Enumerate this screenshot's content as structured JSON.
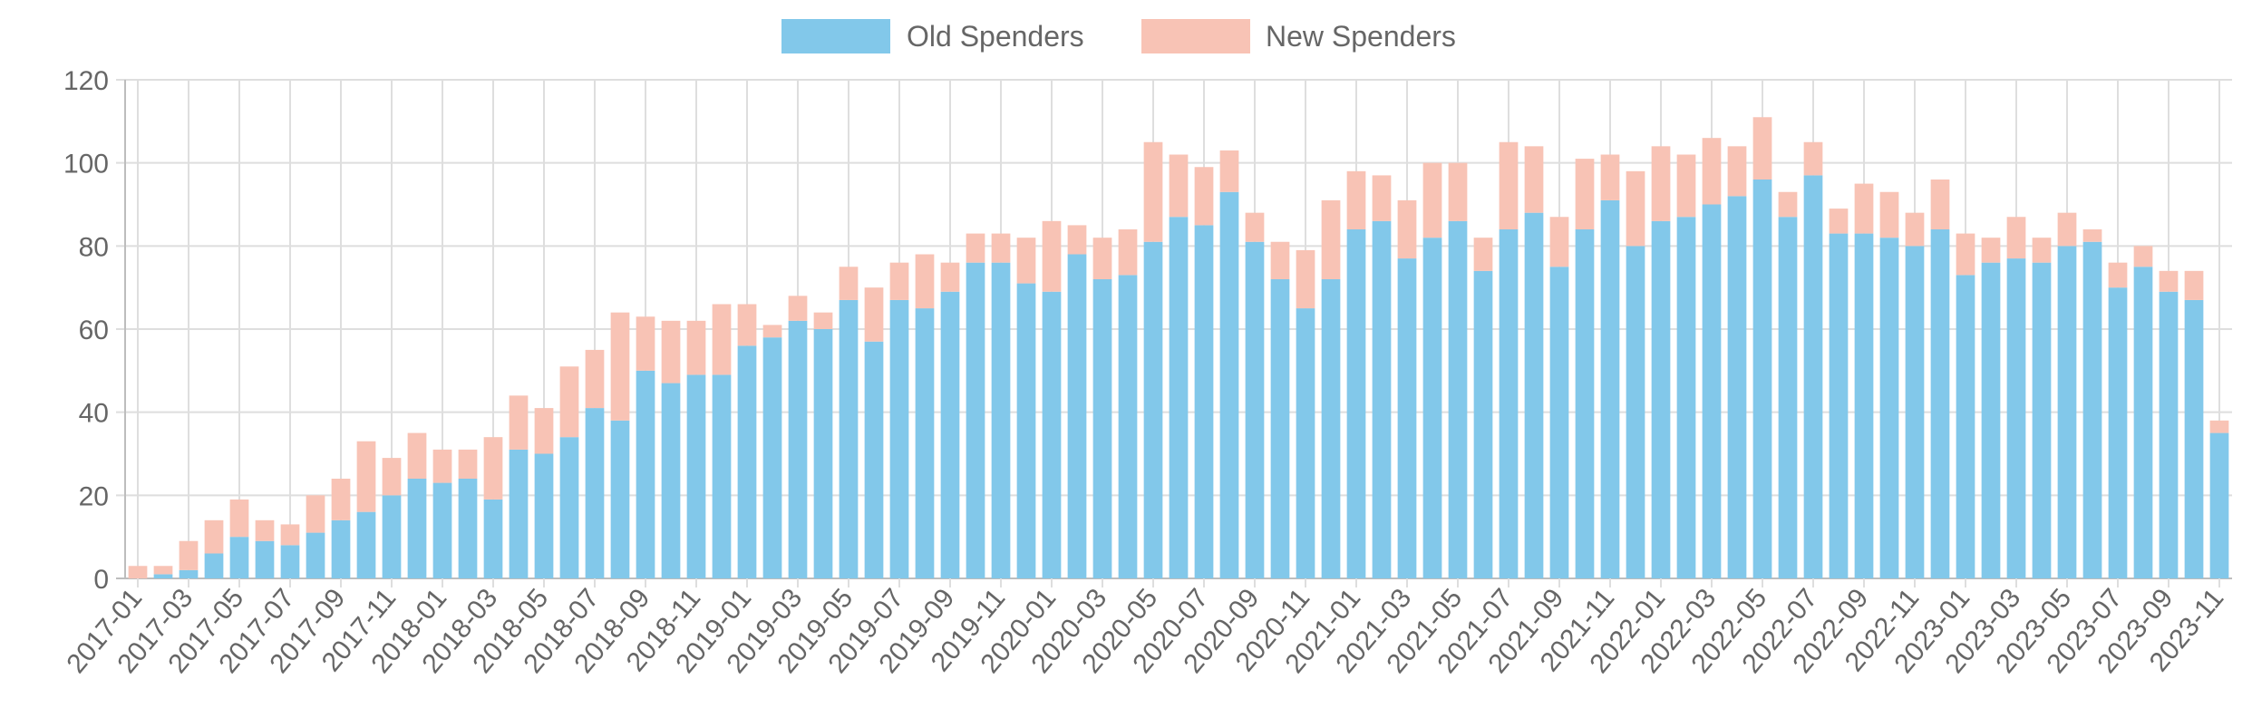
{
  "chart_data": {
    "type": "bar",
    "stacked": true,
    "title": "",
    "xlabel": "",
    "ylabel": "",
    "ylim": [
      0,
      120
    ],
    "yticks": [
      0,
      20,
      40,
      60,
      80,
      100,
      120
    ],
    "grid": true,
    "legend_position": "top-center",
    "categories": [
      "2017-01",
      "2017-02",
      "2017-03",
      "2017-04",
      "2017-05",
      "2017-06",
      "2017-07",
      "2017-08",
      "2017-09",
      "2017-10",
      "2017-11",
      "2017-12",
      "2018-01",
      "2018-02",
      "2018-03",
      "2018-04",
      "2018-05",
      "2018-06",
      "2018-07",
      "2018-08",
      "2018-09",
      "2018-10",
      "2018-11",
      "2018-12",
      "2019-01",
      "2019-02",
      "2019-03",
      "2019-04",
      "2019-05",
      "2019-06",
      "2019-07",
      "2019-08",
      "2019-09",
      "2019-10",
      "2019-11",
      "2019-12",
      "2020-01",
      "2020-02",
      "2020-03",
      "2020-04",
      "2020-05",
      "2020-06",
      "2020-07",
      "2020-08",
      "2020-09",
      "2020-10",
      "2020-11",
      "2020-12",
      "2021-01",
      "2021-02",
      "2021-03",
      "2021-04",
      "2021-05",
      "2021-06",
      "2021-07",
      "2021-08",
      "2021-09",
      "2021-10",
      "2021-11",
      "2021-12",
      "2022-01",
      "2022-02",
      "2022-03",
      "2022-04",
      "2022-05",
      "2022-06",
      "2022-07",
      "2022-08",
      "2022-09",
      "2022-10",
      "2022-11",
      "2022-12",
      "2023-01",
      "2023-02",
      "2023-03",
      "2023-04",
      "2023-05",
      "2023-06",
      "2023-07",
      "2023-08",
      "2023-09",
      "2023-10",
      "2023-11"
    ],
    "x_tick_labels": [
      "2017-01",
      "2017-03",
      "2017-05",
      "2017-07",
      "2017-09",
      "2017-11",
      "2018-01",
      "2018-03",
      "2018-05",
      "2018-07",
      "2018-09",
      "2018-11",
      "2019-01",
      "2019-03",
      "2019-05",
      "2019-07",
      "2019-09",
      "2019-11",
      "2020-01",
      "2020-03",
      "2020-05",
      "2020-07",
      "2020-09",
      "2020-11",
      "2021-01",
      "2021-03",
      "2021-05",
      "2021-07",
      "2021-09",
      "2021-11",
      "2022-01",
      "2022-03",
      "2022-05",
      "2022-07",
      "2022-09",
      "2022-11",
      "2023-01",
      "2023-03",
      "2023-05",
      "2023-07",
      "2023-09",
      "2023-11"
    ],
    "series": [
      {
        "name": "Old Spenders",
        "color": "#82c8ea",
        "values": [
          0,
          1,
          2,
          6,
          10,
          9,
          8,
          11,
          14,
          16,
          20,
          24,
          23,
          24,
          19,
          31,
          30,
          34,
          41,
          38,
          50,
          47,
          49,
          49,
          56,
          58,
          62,
          60,
          67,
          57,
          67,
          65,
          69,
          76,
          76,
          71,
          69,
          78,
          72,
          73,
          81,
          87,
          85,
          93,
          81,
          72,
          65,
          72,
          84,
          86,
          77,
          82,
          86,
          74,
          84,
          88,
          75,
          84,
          91,
          80,
          86,
          87,
          90,
          92,
          96,
          87,
          97,
          83,
          83,
          82,
          80,
          84,
          73,
          76,
          77,
          76,
          80,
          81,
          70,
          75,
          69,
          67,
          35
        ]
      },
      {
        "name": "New Spenders",
        "color": "#f8c3b5",
        "values": [
          3,
          2,
          7,
          8,
          9,
          5,
          5,
          9,
          10,
          17,
          9,
          11,
          8,
          7,
          15,
          13,
          11,
          17,
          14,
          26,
          13,
          15,
          13,
          17,
          10,
          3,
          6,
          4,
          8,
          13,
          9,
          13,
          7,
          7,
          7,
          11,
          17,
          7,
          10,
          11,
          24,
          15,
          14,
          10,
          7,
          9,
          14,
          19,
          14,
          11,
          14,
          18,
          14,
          8,
          21,
          16,
          12,
          17,
          11,
          18,
          18,
          15,
          16,
          12,
          15,
          6,
          8,
          6,
          12,
          11,
          8,
          12,
          10,
          6,
          10,
          6,
          8,
          3,
          6,
          5,
          5,
          7,
          3
        ]
      }
    ]
  }
}
